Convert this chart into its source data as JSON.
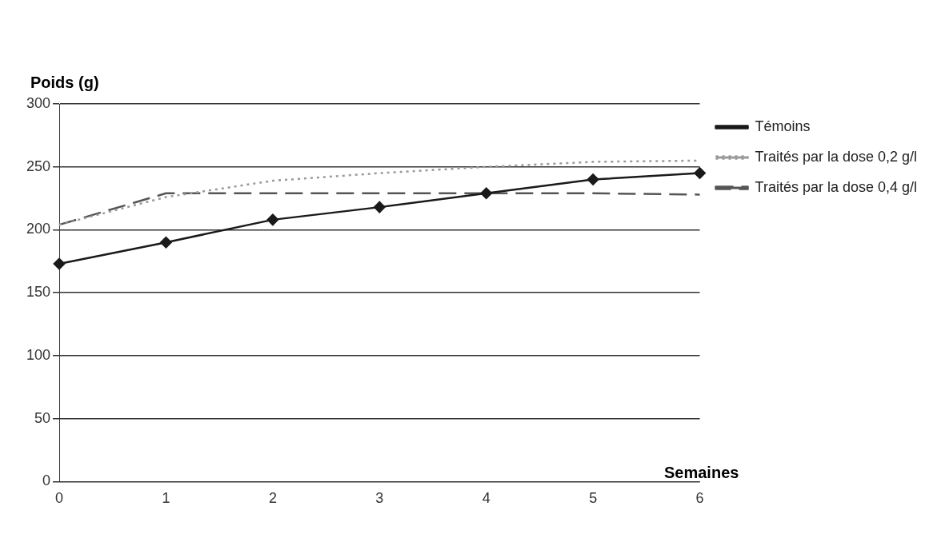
{
  "chart_data": {
    "type": "line",
    "xlabel": "Semaines",
    "ylabel": "Poids (g)",
    "categories": [
      "0",
      "1",
      "2",
      "3",
      "4",
      "5",
      "6"
    ],
    "series": [
      {
        "name": "Témoins",
        "color": "#1a1a1a",
        "marker": "diamond",
        "line_style": "solid",
        "values": [
          173,
          190,
          208,
          218,
          229,
          240,
          245
        ]
      },
      {
        "name": "Traités par la dose 0,2 g/l",
        "color": "#9a9a9a",
        "marker": "none",
        "line_style": "dotted",
        "values": [
          204,
          226,
          239,
          245,
          250,
          254,
          255
        ]
      },
      {
        "name": "Traités par la dose 0,4 g/l",
        "color": "#555555",
        "marker": "none",
        "line_style": "dashed",
        "values": [
          204,
          229,
          229,
          229,
          229,
          229,
          228
        ]
      }
    ],
    "ylim": [
      0,
      300
    ],
    "yticks": [
      0,
      50,
      100,
      150,
      200,
      250,
      300
    ],
    "grid": "y",
    "legend": "top right"
  }
}
